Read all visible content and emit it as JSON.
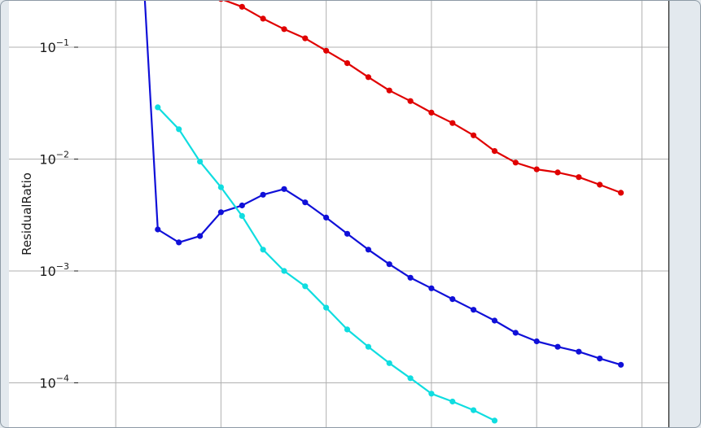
{
  "chart_data": {
    "type": "line",
    "title": "",
    "xlabel": "",
    "ylabel": "ResidualRatio",
    "y_scale": "log",
    "grid": true,
    "y_ticks": [
      {
        "base": "10",
        "exp": "−1",
        "value": 0.1
      },
      {
        "base": "10",
        "exp": "−2",
        "value": 0.01
      },
      {
        "base": "10",
        "exp": "−3",
        "value": 0.001
      },
      {
        "base": "10",
        "exp": "−4",
        "value": 0.0001
      }
    ],
    "series": [
      {
        "color": "#e00000",
        "x": [
          5,
          6,
          7,
          8,
          9,
          10,
          11,
          12,
          13,
          14,
          15,
          16,
          17,
          18,
          19,
          20,
          21,
          22,
          23,
          24
        ],
        "y": [
          0.27,
          0.23,
          0.18,
          0.145,
          0.12,
          0.093,
          0.072,
          0.054,
          0.041,
          0.033,
          0.026,
          0.021,
          0.0163,
          0.0118,
          0.0093,
          0.0081,
          0.0076,
          0.0069,
          0.0059,
          0.005
        ]
      },
      {
        "color": "#1010d8",
        "x": [
          1,
          2,
          3,
          4,
          5,
          6,
          7,
          8,
          9,
          10,
          11,
          12,
          13,
          14,
          15,
          16,
          17,
          18,
          19,
          20,
          21,
          22,
          23,
          24
        ],
        "y": [
          5.0,
          0.00235,
          0.0018,
          0.00205,
          0.00335,
          0.00385,
          0.0048,
          0.0054,
          0.0041,
          0.003,
          0.00215,
          0.00155,
          0.00115,
          0.00087,
          0.0007,
          0.00056,
          0.00045,
          0.00036,
          0.00028,
          0.000235,
          0.00021,
          0.00019,
          0.000165,
          0.000145
        ]
      },
      {
        "color": "#10dde0",
        "x": [
          2,
          3,
          4,
          5,
          6,
          7,
          8,
          9,
          10,
          11,
          12,
          13,
          14,
          15,
          16,
          17,
          18
        ],
        "y": [
          0.029,
          0.0185,
          0.0095,
          0.0056,
          0.0031,
          0.00155,
          0.001,
          0.00073,
          0.00047,
          0.0003,
          0.00021,
          0.00015,
          0.00011,
          8e-05,
          6.8e-05,
          5.7e-05,
          4.6e-05
        ]
      }
    ]
  }
}
